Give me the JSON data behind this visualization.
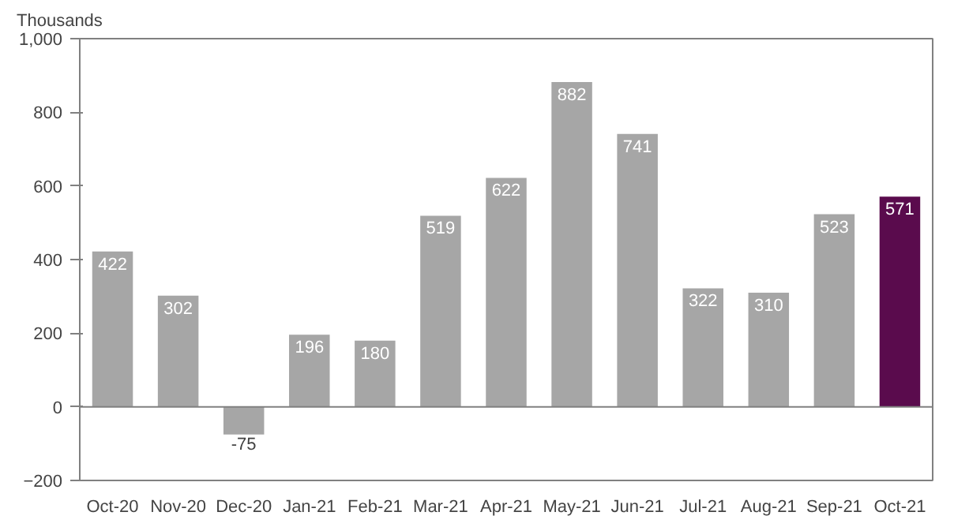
{
  "chart_data": {
    "type": "bar",
    "ylabel": "Thousands",
    "categories": [
      "Oct-20",
      "Nov-20",
      "Dec-20",
      "Jan-21",
      "Feb-21",
      "Mar-21",
      "Apr-21",
      "May-21",
      "Jun-21",
      "Jul-21",
      "Aug-21",
      "Sep-21",
      "Oct-21"
    ],
    "values": [
      422,
      302,
      -75,
      196,
      180,
      519,
      622,
      882,
      741,
      322,
      310,
      523,
      571
    ],
    "colors": [
      "#a6a6a6",
      "#a6a6a6",
      "#a6a6a6",
      "#a6a6a6",
      "#a6a6a6",
      "#a6a6a6",
      "#a6a6a6",
      "#a6a6a6",
      "#a6a6a6",
      "#a6a6a6",
      "#a6a6a6",
      "#a6a6a6",
      "#5a0b4d"
    ],
    "ylim": [
      -200,
      1000
    ],
    "yticks": [
      -200,
      0,
      200,
      400,
      600,
      800,
      {
        "value": 1000,
        "label": "1,000"
      }
    ],
    "data_labels": true
  }
}
